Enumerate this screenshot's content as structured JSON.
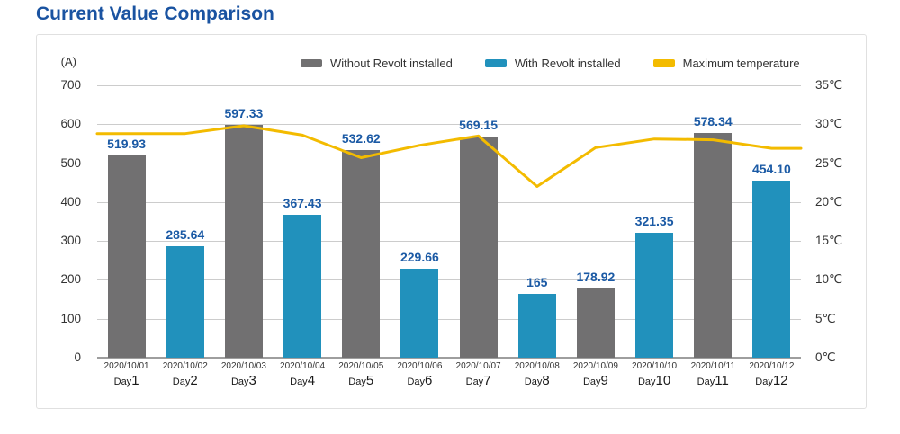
{
  "chart_data": {
    "type": "bar",
    "title": "Current Value Comparison",
    "left_axis": {
      "unit": "(A)",
      "min": 0,
      "max": 700,
      "ticks": [
        700,
        600,
        500,
        400,
        300,
        200,
        100,
        0
      ]
    },
    "right_axis": {
      "min": 0,
      "max": 35,
      "ticks": [
        "35℃",
        "30℃",
        "25℃",
        "20℃",
        "15℃",
        "10℃",
        "5℃",
        "0℃"
      ]
    },
    "legend_position": "top",
    "grid": true,
    "legend": [
      {
        "label": "Without Revolt installed",
        "color": "#717071",
        "type": "bar"
      },
      {
        "label": "With Revolt installed",
        "color": "#2191BC",
        "type": "bar"
      },
      {
        "label": "Maximum temperature",
        "color": "#F3BB00",
        "type": "line"
      }
    ],
    "categories": [
      {
        "date": "2020/10/01",
        "day_prefix": "Day",
        "day_number": "1"
      },
      {
        "date": "2020/10/02",
        "day_prefix": "Day",
        "day_number": "2"
      },
      {
        "date": "2020/10/03",
        "day_prefix": "Day",
        "day_number": "3"
      },
      {
        "date": "2020/10/04",
        "day_prefix": "Day",
        "day_number": "4"
      },
      {
        "date": "2020/10/05",
        "day_prefix": "Day",
        "day_number": "5"
      },
      {
        "date": "2020/10/06",
        "day_prefix": "Day",
        "day_number": "6"
      },
      {
        "date": "2020/10/07",
        "day_prefix": "Day",
        "day_number": "7"
      },
      {
        "date": "2020/10/08",
        "day_prefix": "Day",
        "day_number": "8"
      },
      {
        "date": "2020/10/09",
        "day_prefix": "Day",
        "day_number": "9"
      },
      {
        "date": "2020/10/10",
        "day_prefix": "Day",
        "day_number": "10"
      },
      {
        "date": "2020/10/11",
        "day_prefix": "Day",
        "day_number": "11"
      },
      {
        "date": "2020/10/12",
        "day_prefix": "Day",
        "day_number": "12"
      }
    ],
    "series": [
      {
        "name": "Without Revolt installed",
        "type": "bar",
        "axis": "left",
        "color": "#717071",
        "values": [
          519.93,
          null,
          597.33,
          null,
          532.62,
          null,
          569.15,
          null,
          178.92,
          null,
          578.34,
          null
        ]
      },
      {
        "name": "With Revolt installed",
        "type": "bar",
        "axis": "left",
        "color": "#2191BC",
        "values": [
          null,
          285.64,
          null,
          367.43,
          null,
          229.66,
          null,
          165,
          null,
          321.35,
          null,
          454.1
        ]
      },
      {
        "name": "Maximum temperature",
        "type": "line",
        "axis": "right",
        "color": "#F3BB00",
        "values": [
          28.8,
          28.8,
          29.8,
          28.6,
          25.7,
          27.3,
          28.5,
          22.0,
          27.0,
          28.1,
          28.0,
          26.9
        ]
      }
    ],
    "bar_labels": [
      "519.93",
      "285.64",
      "597.33",
      "367.43",
      "532.62",
      "229.66",
      "569.15",
      "165",
      "178.92",
      "321.35",
      "578.34",
      "454.10"
    ]
  },
  "colors": {
    "title": "#1A53A1",
    "bar_label": "#1B5AA5",
    "axis_text": "#333333",
    "gridline": "#CCCCCC",
    "axis_line": "#9E9E9E",
    "card_border": "#E0E0E0"
  }
}
